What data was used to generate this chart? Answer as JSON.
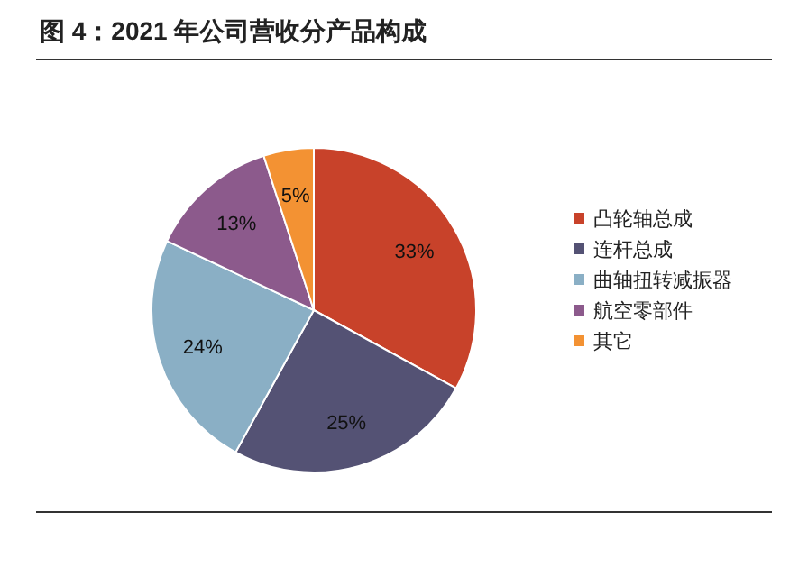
{
  "chart_data": {
    "type": "pie",
    "title": "图 4：2021 年公司营收分产品构成",
    "categories": [
      "凸轮轴总成",
      "连杆总成",
      "曲轴扭转减振器",
      "航空零部件",
      "其它"
    ],
    "values": [
      33,
      25,
      24,
      13,
      5
    ],
    "value_labels": [
      "33%",
      "25%",
      "24%",
      "13%",
      "5%"
    ],
    "colors": [
      "#c8422a",
      "#545274",
      "#8aafc5",
      "#8c5a8c",
      "#f39233"
    ],
    "legend": "right"
  }
}
